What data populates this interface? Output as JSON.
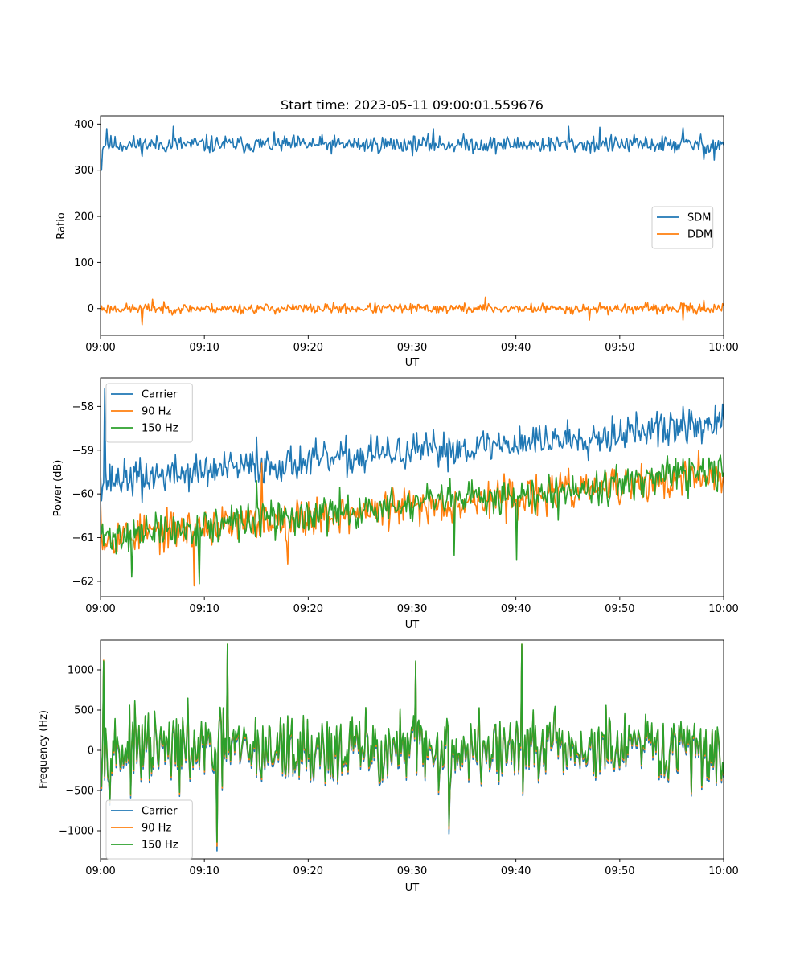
{
  "figure_title": "Start time: 2023-05-11 09:00:01.559676",
  "colors": {
    "c0": "#1f77b4",
    "c1": "#ff7f0e",
    "c2": "#2ca02c"
  },
  "chart_data": [
    {
      "type": "line",
      "title": "Start time: 2023-05-11 09:00:01.559676",
      "xlabel": "UT",
      "ylabel": "Ratio",
      "xlim": [
        "09:00",
        "10:00"
      ],
      "x_ticks": [
        "09:00",
        "09:10",
        "09:20",
        "09:30",
        "09:40",
        "09:50",
        "10:00"
      ],
      "ylim": [
        -58,
        418
      ],
      "y_ticks": [
        0,
        100,
        200,
        300,
        400
      ],
      "y_tick_labels": [
        "0",
        "100",
        "200",
        "300",
        "400"
      ],
      "legend_position": "center-right",
      "series": [
        {
          "name": "SDM",
          "color": "#1f77b4",
          "mean": 356,
          "noise": 14,
          "trend": 0,
          "start": 330,
          "seed": 11,
          "spikes": [
            [
              1,
              300
            ],
            [
              6,
              390
            ],
            [
              70,
              395
            ],
            [
              320,
              390
            ],
            [
              450,
              395
            ],
            [
              480,
              393
            ],
            [
              560,
              392
            ],
            [
              590,
              322
            ],
            [
              580,
              323
            ]
          ]
        },
        {
          "name": "DDM",
          "color": "#ff7f0e",
          "mean": 0,
          "noise": 8,
          "trend": 0,
          "start": -10,
          "seed": 23,
          "spikes": [
            [
              40,
              -35
            ],
            [
              50,
              20
            ],
            [
              370,
              25
            ],
            [
              470,
              -25
            ],
            [
              560,
              -25
            ],
            [
              580,
              18
            ]
          ]
        }
      ]
    },
    {
      "type": "line",
      "xlabel": "UT",
      "ylabel": "Power (dB)",
      "xlim": [
        "09:00",
        "10:00"
      ],
      "x_ticks": [
        "09:00",
        "09:10",
        "09:20",
        "09:30",
        "09:40",
        "09:50",
        "10:00"
      ],
      "ylim": [
        -62.35,
        -57.35
      ],
      "y_ticks": [
        -62,
        -61,
        -60,
        -59,
        -58
      ],
      "y_tick_labels": [
        "−62",
        "−61",
        "−60",
        "−59",
        "−58"
      ],
      "legend_position": "top-left",
      "series": [
        {
          "name": "Carrier",
          "color": "#1f77b4",
          "mean": -59.7,
          "noise": 0.3,
          "trend": 1.3,
          "start": -59.5,
          "seed": 37,
          "spikes": [
            [
              4,
              -57.6
            ],
            [
              40,
              -60.2
            ],
            [
              150,
              -58.7
            ],
            [
              260,
              -58.65
            ],
            [
              500,
              -58.3
            ],
            [
              560,
              -58.0
            ]
          ]
        },
        {
          "name": "90 Hz",
          "color": "#ff7f0e",
          "mean": -61.0,
          "noise": 0.32,
          "trend": 1.4,
          "start": -60.1,
          "seed": 53,
          "spikes": [
            [
              90,
              -62.1
            ],
            [
              155,
              -59.3
            ],
            [
              180,
              -61.6
            ],
            [
              280,
              -60.3
            ],
            [
              420,
              -60.5
            ],
            [
              530,
              -59.7
            ],
            [
              575,
              -59.0
            ],
            [
              580,
              -59.6
            ]
          ]
        },
        {
          "name": "150 Hz",
          "color": "#2ca02c",
          "mean": -61.0,
          "noise": 0.3,
          "trend": 1.5,
          "start": -60.6,
          "seed": 71,
          "spikes": [
            [
              30,
              -61.9
            ],
            [
              95,
              -62.05
            ],
            [
              150,
              -59.7
            ],
            [
              310,
              -60.2
            ],
            [
              340,
              -61.4
            ],
            [
              400,
              -61.5
            ],
            [
              440,
              -60.6
            ],
            [
              520,
              -60.0
            ],
            [
              560,
              -59.2
            ]
          ]
        }
      ]
    },
    {
      "type": "line",
      "xlabel": "UT",
      "ylabel": "Frequency (Hz)",
      "xlim": [
        "09:00",
        "10:00"
      ],
      "x_ticks": [
        "09:00",
        "09:10",
        "09:20",
        "09:30",
        "09:40",
        "09:50",
        "10:00"
      ],
      "ylim": [
        -1350,
        1370
      ],
      "y_ticks": [
        -1000,
        -500,
        0,
        500,
        1000
      ],
      "y_tick_labels": [
        "−1000",
        "−500",
        "0",
        "500",
        "1000"
      ],
      "legend_position": "bottom-left",
      "series": [
        {
          "name": "Carrier",
          "color": "#1f77b4",
          "mean": -30,
          "noise": 330,
          "trend": 0,
          "start": 0,
          "seed": 97,
          "spikes": [
            [
              3,
              1100
            ],
            [
              112,
              -1250
            ],
            [
              122,
              1300
            ],
            [
              303,
              1080
            ],
            [
              405,
              1300
            ],
            [
              335,
              -1040
            ]
          ]
        },
        {
          "name": "90 Hz",
          "color": "#ff7f0e",
          "mean": 0,
          "noise": 330,
          "trend": 0,
          "start": 20,
          "seed": 97,
          "spikes": [
            [
              3,
              1120
            ],
            [
              112,
              -1190
            ],
            [
              122,
              1320
            ],
            [
              303,
              1100
            ],
            [
              405,
              1320
            ],
            [
              335,
              -980
            ]
          ]
        },
        {
          "name": "150 Hz",
          "color": "#2ca02c",
          "mean": 20,
          "noise": 330,
          "trend": 0,
          "start": 40,
          "seed": 97,
          "spikes": [
            [
              3,
              1110
            ],
            [
              112,
              -1140
            ],
            [
              122,
              1320
            ],
            [
              303,
              1110
            ],
            [
              405,
              1320
            ],
            [
              335,
              -940
            ]
          ]
        }
      ]
    }
  ]
}
